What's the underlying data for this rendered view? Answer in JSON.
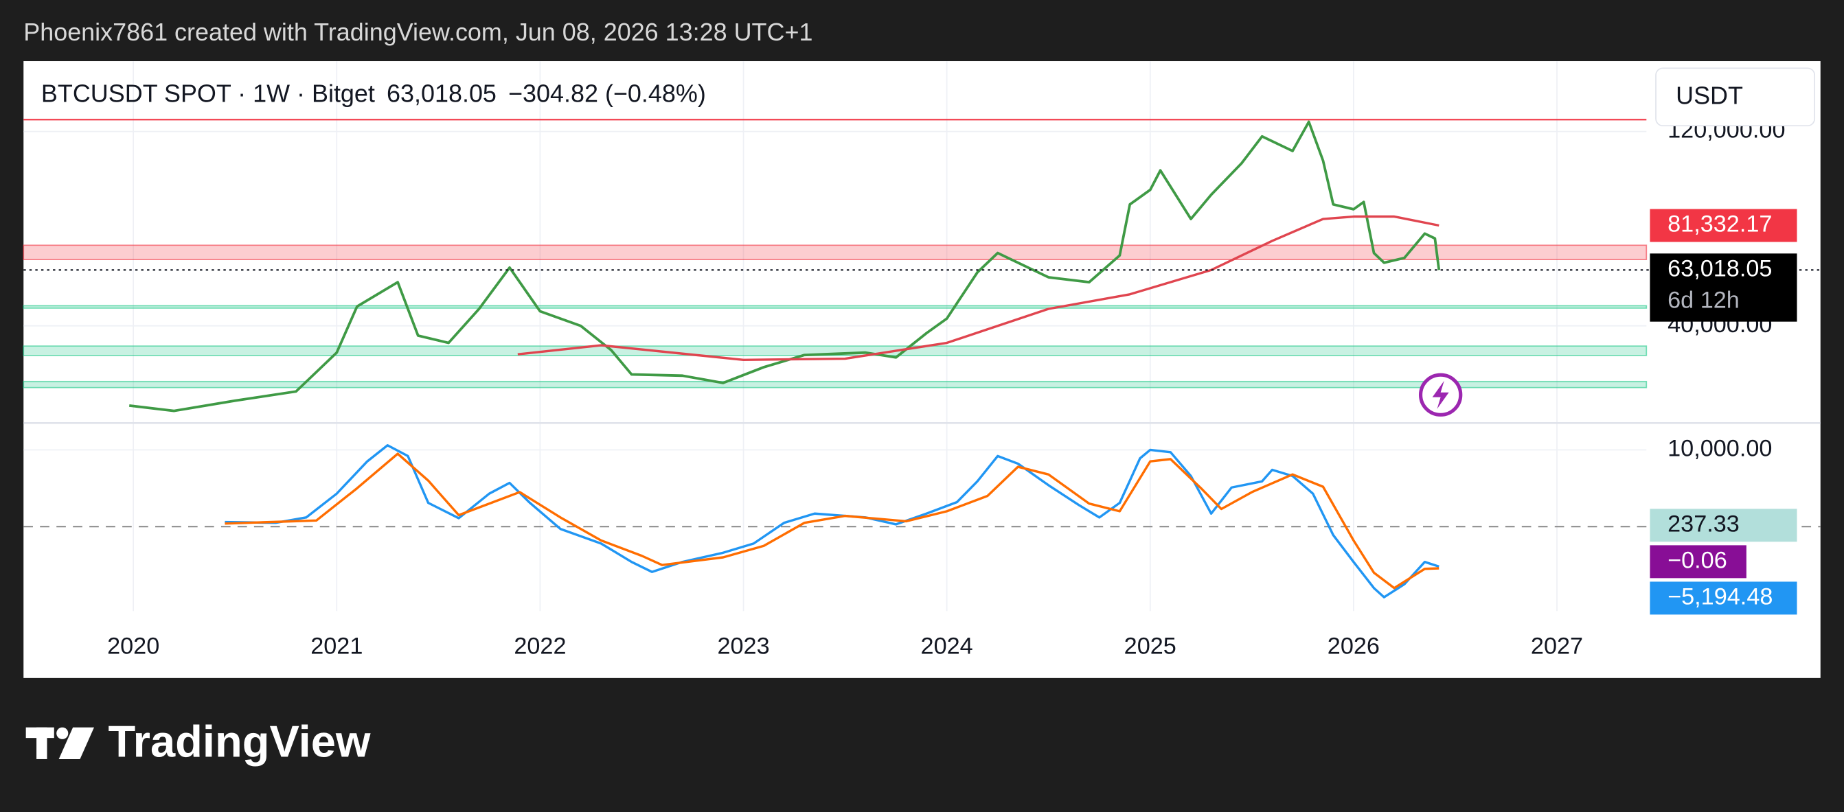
{
  "header": {
    "text": "Phoenix7861 created with TradingView.com, Jun 08, 2026 13:28 UTC+1"
  },
  "legend": {
    "symbol": "BTCUSDT SPOT · 1W · Bitget",
    "change": "−304.82 (−0.48%)"
  },
  "currency": "USDT",
  "countdown": "6d 12h",
  "footer": {
    "logo": "TradingView"
  },
  "chart_data": [
    {
      "type": "line",
      "xlim": [
        2019.46,
        2027.44
      ],
      "xticks": [
        2020,
        2021,
        2022,
        2023,
        2024,
        2025,
        2026,
        2027
      ],
      "ylim": [
        0,
        149000
      ],
      "yticks": [
        {
          "value": 120000,
          "label": "120,000.00"
        },
        {
          "value": 40000,
          "label": "40,000.00"
        }
      ],
      "grid": true,
      "last_price": {
        "value": 63018.05,
        "label": "63,018.05",
        "color": "#000000"
      },
      "ma_label": {
        "value": 81332.17,
        "label": "81,332.17",
        "color": "#f23645"
      },
      "zones": [
        {
          "from": 67300,
          "to": 73200,
          "color": "#f23645"
        },
        {
          "from": 47300,
          "to": 48300,
          "color": "#22c98a"
        },
        {
          "from": 27800,
          "to": 31700,
          "color": "#22c98a"
        },
        {
          "from": 14600,
          "to": 17100,
          "color": "#22c98a"
        }
      ],
      "hlines": [
        {
          "value": 124900,
          "color": "#f23645"
        }
      ],
      "series": [
        {
          "color": "#3f9a45",
          "x": [
            2019.98,
            2020.2,
            2020.5,
            2020.8,
            2021.0,
            2021.1,
            2021.3,
            2021.4,
            2021.55,
            2021.7,
            2021.85,
            2022.0,
            2022.2,
            2022.35,
            2022.45,
            2022.7,
            2022.9,
            2023.1,
            2023.3,
            2023.6,
            2023.75,
            2023.9,
            2024.0,
            2024.15,
            2024.25,
            2024.5,
            2024.7,
            2024.85,
            2024.9,
            2025.0,
            2025.05,
            2025.2,
            2025.3,
            2025.45,
            2025.55,
            2025.7,
            2025.78,
            2025.85,
            2025.9,
            2026.0,
            2026.05,
            2026.1,
            2026.15,
            2026.25,
            2026.35,
            2026.4,
            2026.42
          ],
          "values": [
            7200,
            5000,
            9200,
            13000,
            29000,
            48000,
            58000,
            36000,
            33000,
            47000,
            64000,
            46000,
            40000,
            30000,
            20000,
            19500,
            16500,
            23000,
            28000,
            29000,
            27000,
            37000,
            43000,
            62000,
            70000,
            60000,
            58000,
            69000,
            90000,
            96000,
            104000,
            84000,
            94000,
            107000,
            118000,
            112000,
            124000,
            108000,
            90000,
            88000,
            91000,
            70000,
            66000,
            68000,
            78000,
            76000,
            63018.05
          ]
        },
        {
          "color": "#e0454f",
          "x": [
            2021.89,
            2022.3,
            2023.0,
            2023.5,
            2024.0,
            2024.5,
            2024.9,
            2025.3,
            2025.6,
            2025.85,
            2026.0,
            2026.2,
            2026.42
          ],
          "values": [
            28300,
            32000,
            26000,
            26500,
            33000,
            47000,
            53000,
            63000,
            75000,
            84000,
            85000,
            85000,
            81332.17
          ]
        }
      ]
    },
    {
      "type": "line",
      "xlim": [
        2019.46,
        2027.44
      ],
      "ylim": [
        -11000,
        13500
      ],
      "yticks": [
        {
          "value": 10000,
          "label": "10,000.00"
        }
      ],
      "grid": true,
      "hlines": [
        {
          "value": 0,
          "color": "#888888"
        }
      ],
      "labels": [
        {
          "value": 237.33,
          "label": "237.33",
          "color": "#b2dfdb"
        },
        {
          "value": -0.06,
          "label": "−0.06",
          "color": "#880e96"
        },
        {
          "value": -5194.48,
          "label": "−5,194.48",
          "color": "#2196f3"
        }
      ],
      "series": [
        {
          "color": "#2196f3",
          "x": [
            2020.45,
            2020.7,
            2020.85,
            2021.0,
            2021.15,
            2021.25,
            2021.35,
            2021.45,
            2021.6,
            2021.75,
            2021.85,
            2021.95,
            2022.1,
            2022.3,
            2022.45,
            2022.55,
            2022.7,
            2022.9,
            2023.05,
            2023.2,
            2023.35,
            2023.6,
            2023.75,
            2023.9,
            2024.05,
            2024.15,
            2024.25,
            2024.35,
            2024.5,
            2024.65,
            2024.75,
            2024.85,
            2024.95,
            2025.0,
            2025.1,
            2025.2,
            2025.3,
            2025.4,
            2025.55,
            2025.6,
            2025.7,
            2025.8,
            2025.9,
            2026.0,
            2026.1,
            2026.15,
            2026.25,
            2026.35,
            2026.42
          ],
          "values": [
            600,
            500,
            1200,
            4300,
            8500,
            10600,
            9200,
            3100,
            1100,
            4300,
            5700,
            3100,
            -300,
            -2200,
            -4600,
            -5900,
            -4600,
            -3400,
            -2200,
            500,
            1700,
            1200,
            300,
            1700,
            3200,
            5900,
            9200,
            8200,
            5400,
            2800,
            1200,
            3100,
            8900,
            10000,
            9700,
            6600,
            1700,
            5100,
            5900,
            7400,
            6600,
            4300,
            -1100,
            -4600,
            -8000,
            -9200,
            -7500,
            -4600,
            -5194.48
          ]
        },
        {
          "color": "#ff6d00",
          "x": [
            2020.45,
            2020.9,
            2021.1,
            2021.3,
            2021.45,
            2021.6,
            2021.8,
            2021.9,
            2022.1,
            2022.3,
            2022.5,
            2022.6,
            2022.9,
            2023.1,
            2023.3,
            2023.5,
            2023.8,
            2024.0,
            2024.2,
            2024.35,
            2024.5,
            2024.7,
            2024.85,
            2025.0,
            2025.1,
            2025.25,
            2025.35,
            2025.5,
            2025.7,
            2025.85,
            2026.0,
            2026.1,
            2026.2,
            2026.35,
            2026.42
          ],
          "values": [
            400,
            800,
            5000,
            9500,
            6000,
            1500,
            3500,
            4500,
            1200,
            -1800,
            -3800,
            -5000,
            -4000,
            -2500,
            500,
            1400,
            700,
            2000,
            4000,
            7800,
            6800,
            3000,
            2000,
            8500,
            8800,
            5000,
            2300,
            4500,
            6800,
            5200,
            -1800,
            -6000,
            -8000,
            -5500,
            -5431.81
          ]
        }
      ]
    }
  ]
}
